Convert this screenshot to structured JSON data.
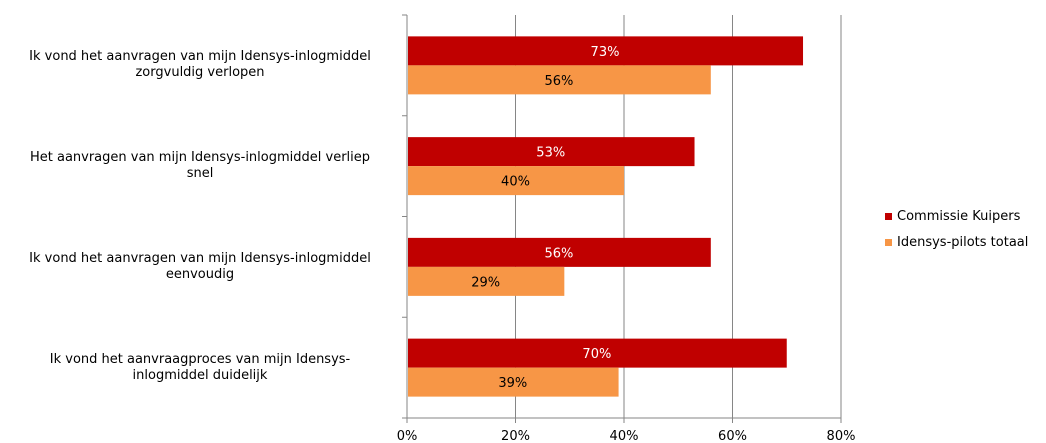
{
  "chart_data": {
    "type": "bar",
    "orientation": "horizontal",
    "categories": [
      "Ik vond het aanvragen van mijn Idensys-inlogmiddel zorgvuldig verlopen",
      "Het aanvragen van mijn Idensys-inlogmiddel verliep snel",
      "Ik vond het aanvragen van mijn Idensys-inlogmiddel eenvoudig",
      "Ik vond het aanvraagproces van mijn Idensys-inlogmiddel duidelijk"
    ],
    "category_lines": [
      [
        "Ik vond het aanvragen van mijn Idensys-inlogmiddel",
        "zorgvuldig verlopen"
      ],
      [
        "Het aanvragen van mijn Idensys-inlogmiddel verliep",
        "snel"
      ],
      [
        "Ik vond het aanvragen van mijn Idensys-inlogmiddel",
        "eenvoudig"
      ],
      [
        "Ik vond het aanvraagproces van mijn Idensys-",
        "inlogmiddel duidelijk"
      ]
    ],
    "series": [
      {
        "name": "Commissie Kuipers",
        "color": "#C00000",
        "label_color": "#ffffff",
        "values": [
          73,
          53,
          56,
          70
        ],
        "labels": [
          "73%",
          "53%",
          "56%",
          "70%"
        ]
      },
      {
        "name": "Idensys-pilots totaal",
        "color": "#F79646",
        "label_color": "#000000",
        "values": [
          56,
          40,
          29,
          39
        ],
        "labels": [
          "56%",
          "40%",
          "29%",
          "39%"
        ]
      }
    ],
    "xlim": [
      0,
      80
    ],
    "x_ticks": [
      0,
      20,
      40,
      60,
      80
    ],
    "x_tick_labels": [
      "0%",
      "20%",
      "40%",
      "60%",
      "80%"
    ],
    "grid": true,
    "legend_position": "right",
    "title": "",
    "xlabel": "",
    "ylabel": ""
  }
}
